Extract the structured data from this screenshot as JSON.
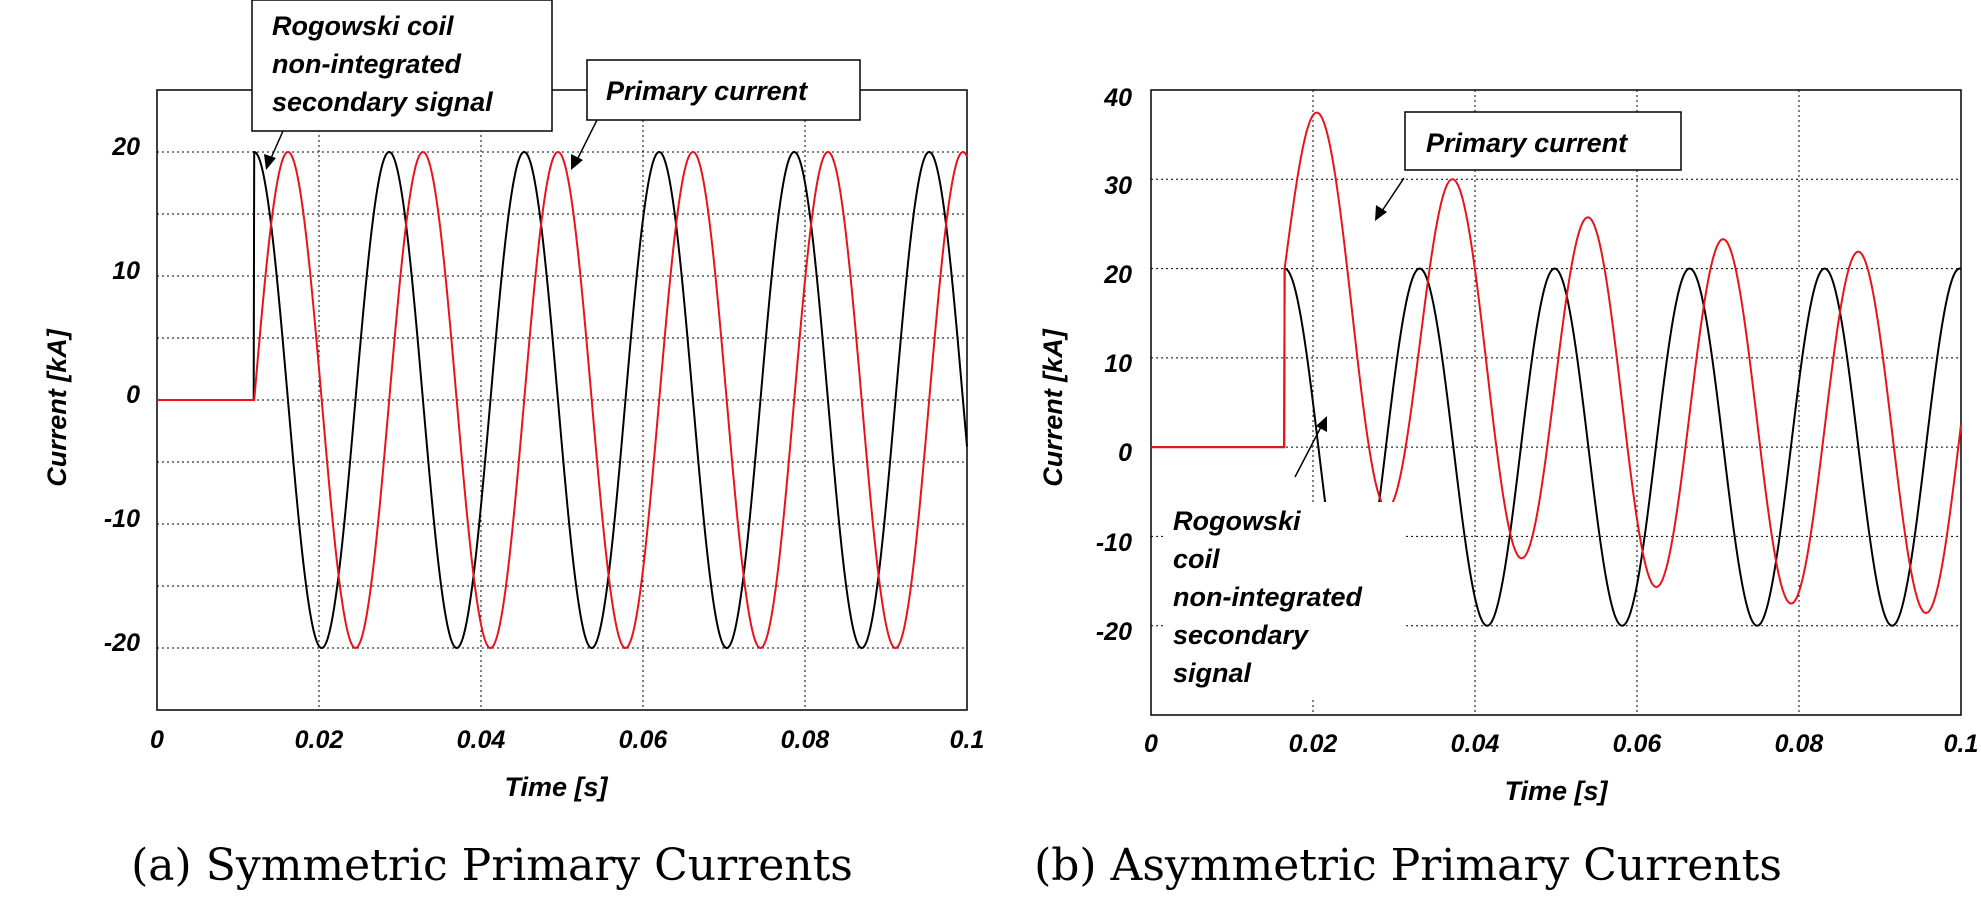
{
  "chart_data": [
    {
      "type": "line",
      "caption": "(a) Symmetric Primary Currents",
      "xlabel": "Time [s]",
      "ylabel": "Current [kA]",
      "xlim": [
        0,
        0.1
      ],
      "ylim": [
        -25,
        25
      ],
      "xticks": [
        "0",
        "0.02",
        "0.04",
        "0.06",
        "0.08",
        "0.1"
      ],
      "yticks": [
        "20",
        "10",
        "0",
        "-10",
        "-20"
      ],
      "grid": true,
      "fault_time": 0.012,
      "frequency_hz": 60,
      "series": [
        {
          "id": "secondary",
          "color": "#000000",
          "amplitude": 20,
          "phase_deg": 90,
          "offset": 0,
          "decay_tau": 0
        },
        {
          "id": "primary",
          "color": "#e8141a",
          "amplitude": 20,
          "phase_deg": 0,
          "offset": 0,
          "decay_tau": 0
        }
      ],
      "annotations": [
        {
          "lines": [
            "Rogowski coil",
            "non-integrated",
            "secondary signal"
          ],
          "target_series": "secondary"
        },
        {
          "lines": [
            "Primary current"
          ],
          "target_series": "primary"
        }
      ]
    },
    {
      "type": "line",
      "caption": "(b) Asymmetric Primary Currents",
      "xlabel": "Time [s]",
      "ylabel": "Current [kA]",
      "xlim": [
        0,
        0.1
      ],
      "ylim": [
        -30,
        40
      ],
      "xticks": [
        "0",
        "0.02",
        "0.04",
        "0.06",
        "0.08",
        "0.1"
      ],
      "yticks": [
        "40",
        "30",
        "20",
        "10",
        "0",
        "-10",
        "-20"
      ],
      "grid": true,
      "fault_time": 0.0165,
      "frequency_hz": 60,
      "series": [
        {
          "id": "secondary",
          "color": "#000000",
          "amplitude": 20,
          "phase_deg": 90,
          "offset": 0,
          "decay_tau": 0
        },
        {
          "id": "primary",
          "color": "#e8141a",
          "amplitude": 20,
          "phase_deg": 0,
          "offset": 20,
          "decay_tau": 0.03
        }
      ],
      "annotations": [
        {
          "lines": [
            "Primary current"
          ],
          "target_series": "primary"
        },
        {
          "lines": [
            "Rogowski",
            "coil",
            "non-integrated",
            "secondary",
            "signal"
          ],
          "target_series": "secondary"
        }
      ]
    }
  ]
}
